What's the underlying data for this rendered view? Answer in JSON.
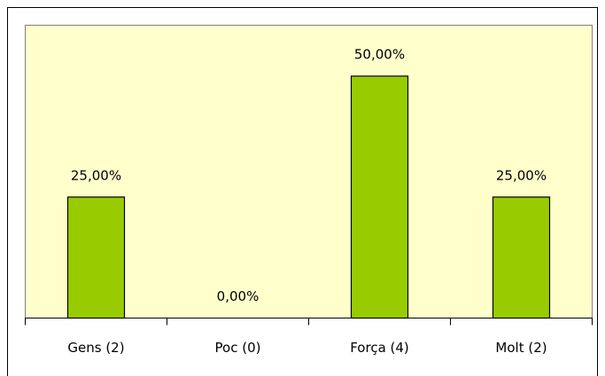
{
  "chart_data": {
    "type": "bar",
    "categories": [
      "Gens (2)",
      "Poc (0)",
      "Força (4)",
      "Molt (2)"
    ],
    "values": [
      25,
      0,
      50,
      25
    ],
    "value_labels": [
      "25,00%",
      "0,00%",
      "50,00%",
      "25,00%"
    ],
    "color": "#99cc00"
  }
}
